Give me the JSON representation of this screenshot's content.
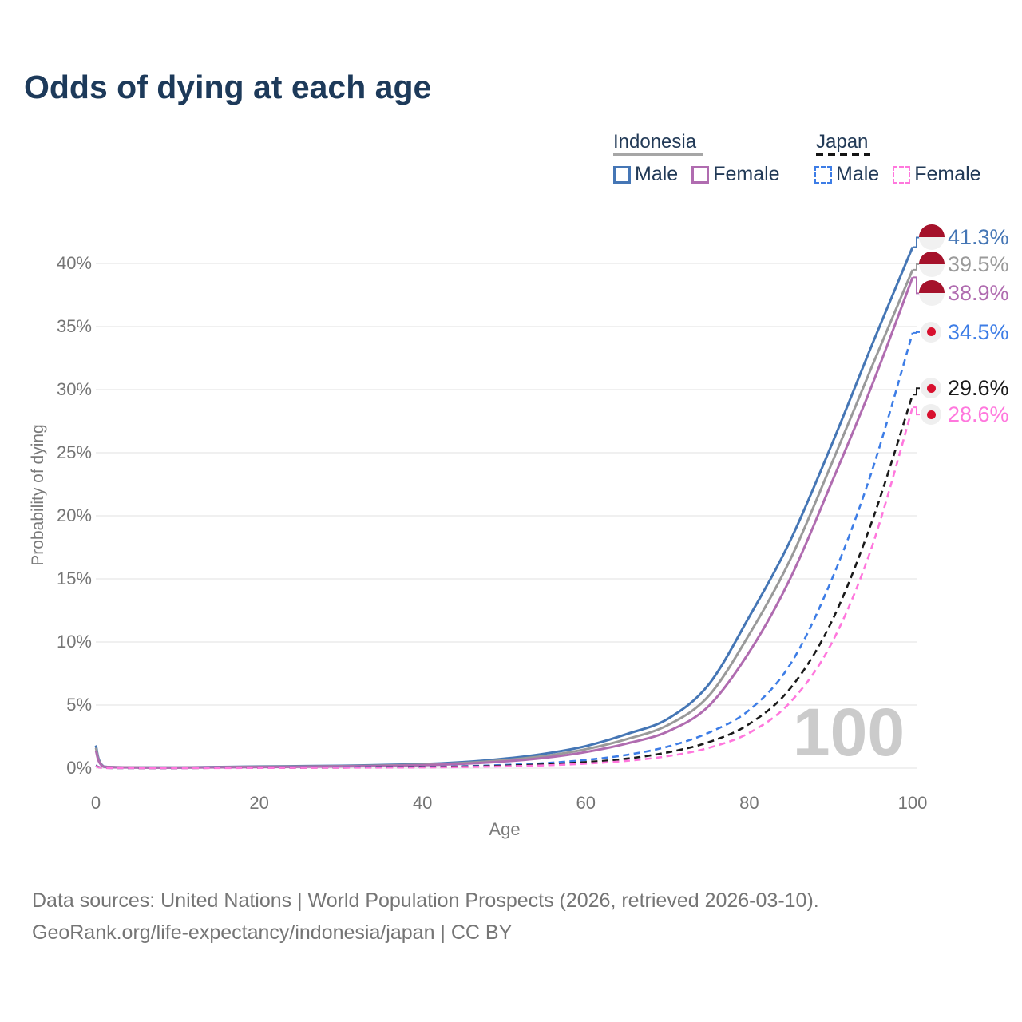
{
  "title": "Odds of dying at each age",
  "legend": {
    "indonesia": {
      "label": "Indonesia",
      "male": "Male",
      "female": "Female"
    },
    "japan": {
      "label": "Japan",
      "male": "Male",
      "female": "Female"
    }
  },
  "chart_data": {
    "type": "line",
    "title": "Odds of dying at each age",
    "xlabel": "Age",
    "ylabel": "Probability of dying",
    "xlim": [
      0,
      100
    ],
    "ylim": [
      0,
      43
    ],
    "grid": true,
    "legend_position": "top-right",
    "watermark": "100",
    "x_ticks": [
      0,
      20,
      40,
      60,
      80,
      100
    ],
    "y_ticks": [
      "0%",
      "5%",
      "10%",
      "15%",
      "20%",
      "25%",
      "30%",
      "35%",
      "40%"
    ],
    "y_tick_values": [
      0,
      5,
      10,
      15,
      20,
      25,
      30,
      35,
      40
    ],
    "ages": [
      0,
      1,
      5,
      10,
      20,
      30,
      40,
      45,
      50,
      55,
      60,
      65,
      70,
      75,
      80,
      85,
      90,
      95,
      100
    ],
    "unit": "percent",
    "series": [
      {
        "id": "indonesia-male",
        "country": "Indonesia",
        "sex": "Male",
        "style": "solid",
        "color": "#4576b5",
        "flag": "indonesia",
        "end_label": "41.3%",
        "end_value": 41.3,
        "values": [
          1.8,
          0.12,
          0.06,
          0.05,
          0.13,
          0.19,
          0.32,
          0.48,
          0.75,
          1.15,
          1.75,
          2.7,
          3.9,
          6.6,
          12.0,
          18.0,
          25.5,
          33.5,
          41.3
        ]
      },
      {
        "id": "indonesia-both",
        "country": "Indonesia",
        "sex": "Both sexes",
        "style": "solid",
        "color": "#9a9a9a",
        "flag": "indonesia",
        "end_label": "39.5%",
        "end_value": 39.5,
        "values": [
          1.6,
          0.11,
          0.055,
          0.045,
          0.11,
          0.16,
          0.27,
          0.41,
          0.63,
          0.97,
          1.5,
          2.3,
          3.4,
          5.7,
          10.6,
          16.5,
          24.0,
          31.8,
          39.5
        ]
      },
      {
        "id": "indonesia-female",
        "country": "Indonesia",
        "sex": "Female",
        "style": "solid",
        "color": "#b06cb0",
        "flag": "indonesia",
        "end_label": "38.9%",
        "end_value": 38.9,
        "values": [
          1.4,
          0.1,
          0.05,
          0.04,
          0.09,
          0.13,
          0.23,
          0.35,
          0.53,
          0.82,
          1.28,
          1.95,
          2.9,
          4.9,
          9.2,
          15.0,
          22.5,
          30.3,
          38.9
        ]
      },
      {
        "id": "japan-male",
        "country": "Japan",
        "sex": "Male",
        "style": "dashed",
        "color": "#3d7de6",
        "flag": "japan",
        "end_label": "34.5%",
        "end_value": 34.5,
        "values": [
          0.2,
          0.02,
          0.01,
          0.008,
          0.045,
          0.06,
          0.1,
          0.15,
          0.25,
          0.4,
          0.65,
          1.05,
          1.7,
          2.8,
          4.6,
          8.2,
          14.8,
          23.5,
          34.5
        ]
      },
      {
        "id": "japan-both",
        "country": "Japan",
        "sex": "Both sexes",
        "style": "dashed",
        "color": "#1a1a1a",
        "flag": "japan",
        "end_label": "29.6%",
        "end_value": 29.6,
        "values": [
          0.18,
          0.018,
          0.009,
          0.007,
          0.03,
          0.045,
          0.08,
          0.12,
          0.19,
          0.3,
          0.48,
          0.75,
          1.25,
          2.05,
          3.5,
          6.3,
          11.5,
          19.5,
          29.6
        ]
      },
      {
        "id": "japan-female",
        "country": "Japan",
        "sex": "Female",
        "style": "dashed",
        "color": "#ff77dd",
        "flag": "japan",
        "end_label": "28.6%",
        "end_value": 28.6,
        "values": [
          0.16,
          0.015,
          0.008,
          0.006,
          0.02,
          0.035,
          0.06,
          0.09,
          0.14,
          0.22,
          0.36,
          0.58,
          0.95,
          1.6,
          2.8,
          5.2,
          9.8,
          17.5,
          28.6
        ]
      }
    ]
  },
  "footer": {
    "line1": "Data sources: United Nations | World Population Prospects (2026, retrieved 2026-03-10).",
    "line2": "GeoRank.org/life-expectancy/indonesia/japan | CC BY"
  }
}
